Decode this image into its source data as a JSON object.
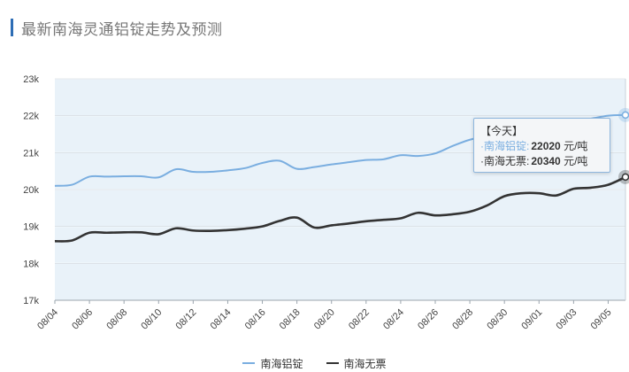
{
  "page": {
    "title": "最新南海灵通铝锭走势及预测"
  },
  "chart_data": {
    "type": "line",
    "x": [
      "08/04",
      "08/05",
      "08/06",
      "08/07",
      "08/08",
      "08/09",
      "08/10",
      "08/11",
      "08/12",
      "08/13",
      "08/14",
      "08/15",
      "08/16",
      "08/17",
      "08/18",
      "08/19",
      "08/20",
      "08/21",
      "08/22",
      "08/23",
      "08/24",
      "08/25",
      "08/26",
      "08/27",
      "08/28",
      "08/29",
      "08/30",
      "08/31",
      "09/01",
      "09/02",
      "09/03",
      "09/04",
      "09/05",
      "09/06"
    ],
    "x_tick_labels": [
      "08/04",
      "08/06",
      "08/08",
      "08/10",
      "08/12",
      "08/14",
      "08/16",
      "08/18",
      "08/20",
      "08/22",
      "08/24",
      "08/26",
      "08/28",
      "08/30",
      "09/01",
      "09/03",
      "09/05"
    ],
    "series": [
      {
        "name": "南海铝锭",
        "color": "#7aaee0",
        "values": [
          20100,
          20130,
          20350,
          20350,
          20360,
          20360,
          20330,
          20550,
          20480,
          20480,
          20520,
          20580,
          20720,
          20780,
          20560,
          20610,
          20680,
          20740,
          20800,
          20820,
          20930,
          20910,
          20980,
          21180,
          21350,
          21450,
          21550,
          21650,
          21730,
          21800,
          21850,
          21920,
          22000,
          22020
        ]
      },
      {
        "name": "南海无票",
        "color": "#333333",
        "values": [
          18600,
          18620,
          18830,
          18830,
          18840,
          18840,
          18790,
          18950,
          18890,
          18880,
          18900,
          18940,
          19000,
          19150,
          19240,
          18970,
          19030,
          19080,
          19140,
          19180,
          19220,
          19370,
          19300,
          19330,
          19400,
          19570,
          19820,
          19900,
          19900,
          19840,
          20020,
          20050,
          20130,
          20340
        ]
      }
    ],
    "ylim": [
      17000,
      23000
    ],
    "y_tick_labels": [
      "23k",
      "22k",
      "21k",
      "20k",
      "19k",
      "18k",
      "17k"
    ],
    "grid": true,
    "legend_position": "bottom",
    "tooltip": {
      "header": "【今天】",
      "rows": [
        {
          "label": "南海铝锭:",
          "value": "22020",
          "unit": "元/吨"
        },
        {
          "label": "南海无票:",
          "value": "20340",
          "unit": "元/吨"
        }
      ]
    }
  }
}
